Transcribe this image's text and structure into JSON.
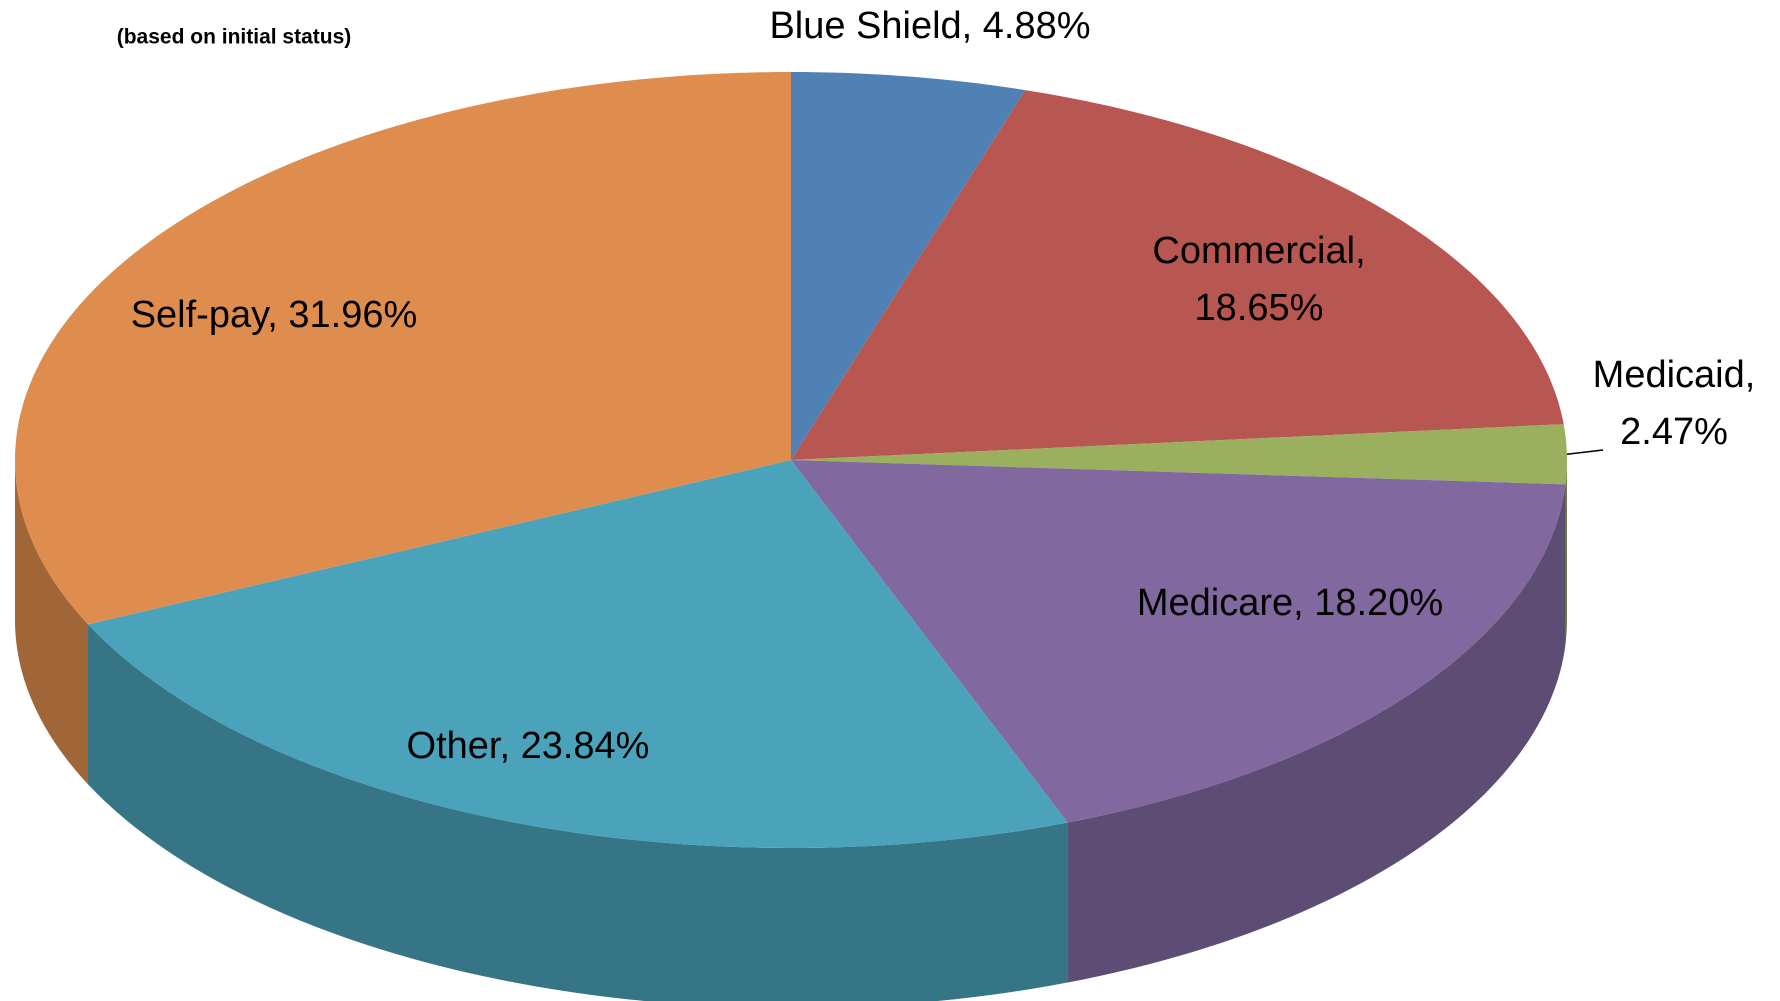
{
  "chart_data": {
    "type": "pie",
    "subtitle": "(based on initial status)",
    "categories": [
      "Blue Shield",
      "Commercial",
      "Medicaid",
      "Medicare",
      "Other",
      "Self-pay"
    ],
    "values": [
      4.88,
      18.65,
      2.47,
      18.2,
      23.84,
      31.96
    ],
    "value_labels": [
      "Blue Shield, 4.88%",
      "Commercial, 18.65%",
      "Medicaid, 2.47%",
      "Medicare, 18.20%",
      "Other, 23.84%",
      "Self-pay, 31.96%"
    ],
    "colors": [
      "#4f81b5",
      "#b85652",
      "#9bb05e",
      "#8169a0",
      "#4aa3ba",
      "#df8d4e"
    ]
  }
}
